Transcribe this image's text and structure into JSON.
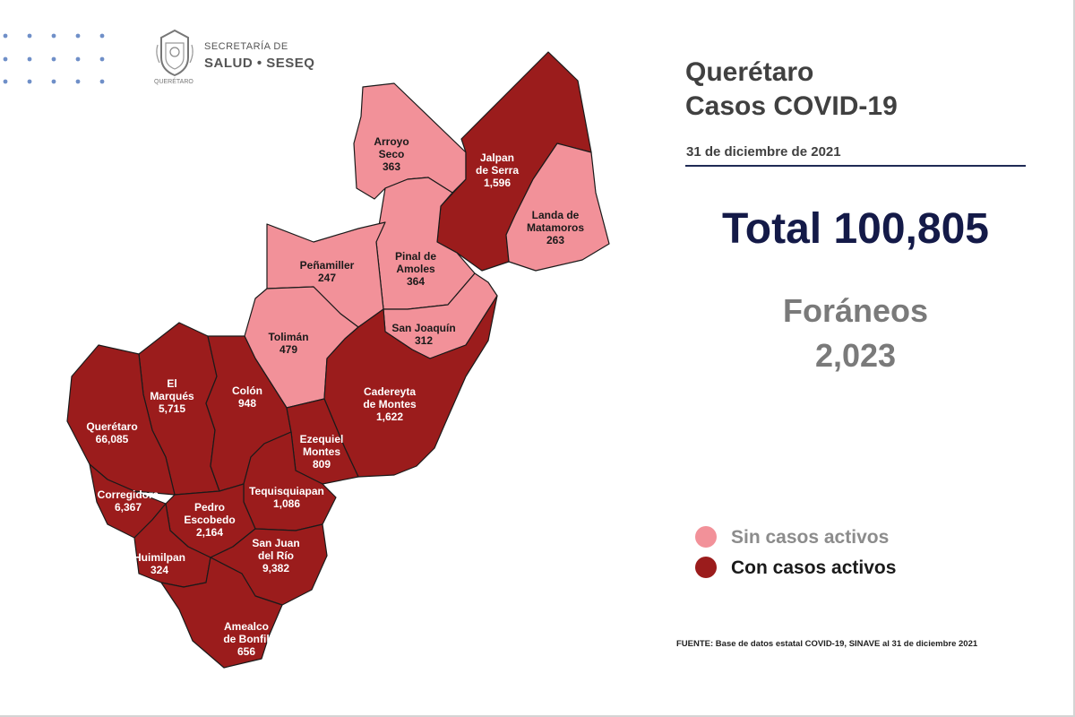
{
  "header": {
    "logo_line1": "SECRETARÍA DE",
    "logo_line2": "SALUD • SESEQ",
    "logo_line3": "QUERÉTARO"
  },
  "title": {
    "line1": "Querétaro",
    "line2": "Casos COVID-19"
  },
  "date": "31 de diciembre de 2021",
  "total_label": "Total 100,805",
  "foraneos": {
    "label": "Foráneos",
    "value": "2,023"
  },
  "legend": [
    {
      "label": "Sin casos activos",
      "color": "#f29199",
      "text_color": "#8c8c8c"
    },
    {
      "label": "Con casos activos",
      "color": "#9b1c1c",
      "text_color": "#1a1a1a"
    }
  ],
  "colors": {
    "sin_casos": "#f29199",
    "con_casos": "#9b1c1c"
  },
  "source": "FUENTE: Base de datos estatal  COVID-19,  SINAVE  al 31 de diciembre 2021",
  "municipalities": [
    {
      "id": "arroyo-seco",
      "lines": [
        "Arroyo",
        "Seco",
        "363"
      ],
      "status": "sin"
    },
    {
      "id": "jalpan",
      "lines": [
        "Jalpan",
        "de Serra",
        "1,596"
      ],
      "status": "con"
    },
    {
      "id": "landa",
      "lines": [
        "Landa de",
        "Matamoros",
        "263"
      ],
      "status": "sin"
    },
    {
      "id": "pinal",
      "lines": [
        "Pinal de",
        "Amoles",
        "364"
      ],
      "status": "sin"
    },
    {
      "id": "penamiller",
      "lines": [
        "Peñamiller",
        "247"
      ],
      "status": "sin"
    },
    {
      "id": "toliman",
      "lines": [
        "Tolimán",
        "479"
      ],
      "status": "sin"
    },
    {
      "id": "san-joaquin",
      "lines": [
        "San Joaquín",
        "312"
      ],
      "status": "sin"
    },
    {
      "id": "cadereyta",
      "lines": [
        "Cadereyta",
        "de Montes",
        "1,622"
      ],
      "status": "con"
    },
    {
      "id": "el-marques",
      "lines": [
        "El",
        "Marqués",
        "5,715"
      ],
      "status": "con"
    },
    {
      "id": "colon",
      "lines": [
        "Colón",
        "948"
      ],
      "status": "con"
    },
    {
      "id": "queretaro",
      "lines": [
        "Querétaro",
        "66,085"
      ],
      "status": "con"
    },
    {
      "id": "ezequiel",
      "lines": [
        "Ezequiel",
        "Montes",
        "809"
      ],
      "status": "con"
    },
    {
      "id": "corregidora",
      "lines": [
        "Corregidora",
        "6,367"
      ],
      "status": "con"
    },
    {
      "id": "tequisquiapan",
      "lines": [
        "Tequisquiapan",
        "1,086"
      ],
      "status": "con"
    },
    {
      "id": "pedro",
      "lines": [
        "Pedro",
        "Escobedo",
        "2,164"
      ],
      "status": "con"
    },
    {
      "id": "san-juan",
      "lines": [
        "San Juan",
        "del Río",
        "9,382"
      ],
      "status": "con"
    },
    {
      "id": "huimilpan",
      "lines": [
        "Huimilpan",
        "324"
      ],
      "status": "con"
    },
    {
      "id": "amealco",
      "lines": [
        "Amealco",
        "de Bonfil",
        "656"
      ],
      "status": "con"
    }
  ]
}
